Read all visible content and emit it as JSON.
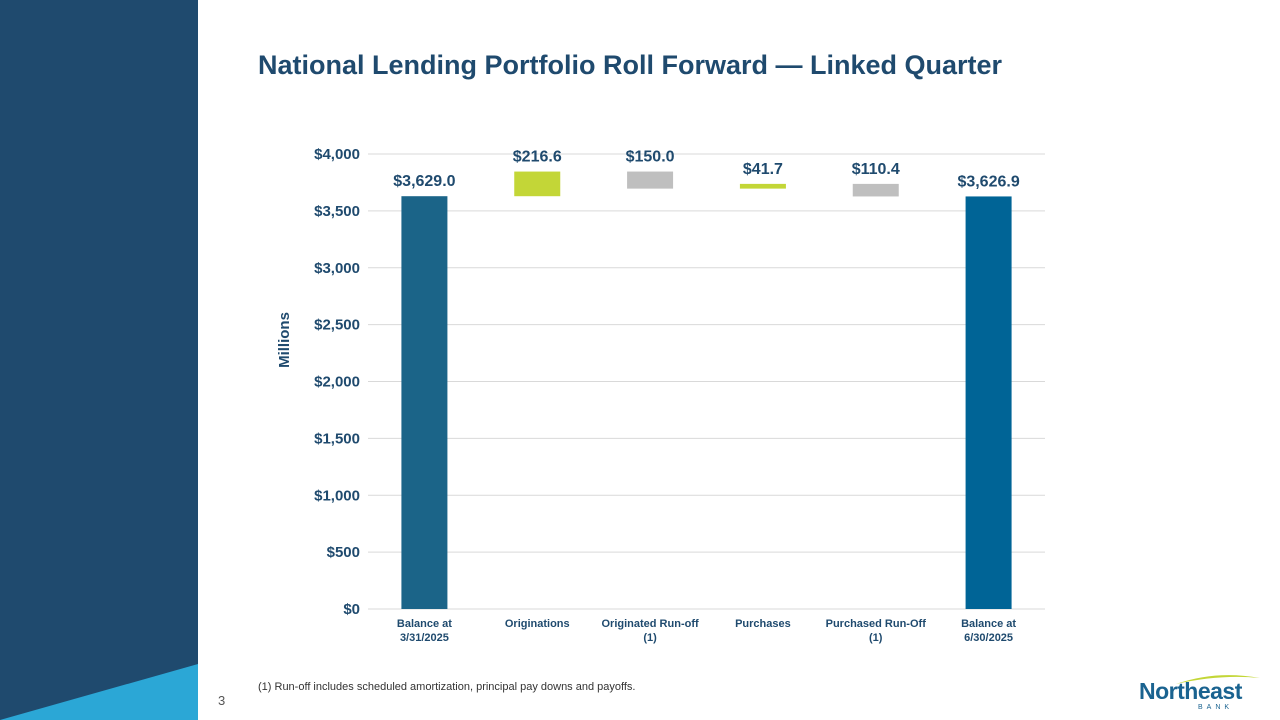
{
  "title": "National Lending Portfolio Roll Forward — Linked Quarter",
  "page_number": "3",
  "footnote": "(1) Run-off includes scheduled amortization, principal pay downs and payoffs.",
  "logo": {
    "name": "Northeast",
    "sub": "BANK"
  },
  "colors": {
    "sidebar": "#1f4a6e",
    "sidebar_accent": "#2ba7d6",
    "balance_bar": "#1b6488",
    "balance_bar_end": "#006496",
    "increase_bar": "#c3d637",
    "decrease_bar": "#bfbfbf",
    "text": "#1f4a6e",
    "grid": "#d9d9d9"
  },
  "chart_data": {
    "type": "waterfall",
    "title": "National Lending Portfolio Roll Forward — Linked Quarter",
    "ylabel": "Millions",
    "xlabel": "",
    "ylim": [
      0,
      4000
    ],
    "yticks": [
      {
        "value": 0,
        "label": "$0"
      },
      {
        "value": 500,
        "label": "$500"
      },
      {
        "value": 1000,
        "label": "$1,000"
      },
      {
        "value": 1500,
        "label": "$1,500"
      },
      {
        "value": 2000,
        "label": "$2,000"
      },
      {
        "value": 2500,
        "label": "$2,500"
      },
      {
        "value": 3000,
        "label": "$3,000"
      },
      {
        "value": 3500,
        "label": "$3,500"
      },
      {
        "value": 4000,
        "label": "$4,000"
      }
    ],
    "grid": true,
    "legend": "none",
    "steps": [
      {
        "category": [
          "Balance at",
          "3/31/2025"
        ],
        "kind": "total",
        "value": 3629.0,
        "start": 0,
        "end": 3629.0,
        "label": "$3,629.0"
      },
      {
        "category": [
          "Originations"
        ],
        "kind": "increase",
        "value": 216.6,
        "start": 3629.0,
        "end": 3845.6,
        "label": "$216.6"
      },
      {
        "category": [
          "Originated Run-off",
          "(1)"
        ],
        "kind": "decrease",
        "value": 150.0,
        "start": 3845.6,
        "end": 3695.6,
        "label": "$150.0"
      },
      {
        "category": [
          "Purchases"
        ],
        "kind": "increase",
        "value": 41.7,
        "start": 3695.6,
        "end": 3737.3,
        "label": "$41.7"
      },
      {
        "category": [
          "Purchased Run-Off",
          "(1)"
        ],
        "kind": "decrease",
        "value": 110.4,
        "start": 3737.3,
        "end": 3626.9,
        "label": "$110.4"
      },
      {
        "category": [
          "Balance at",
          "6/30/2025"
        ],
        "kind": "total",
        "value": 3626.9,
        "start": 0,
        "end": 3626.9,
        "label": "$3,626.9"
      }
    ]
  }
}
